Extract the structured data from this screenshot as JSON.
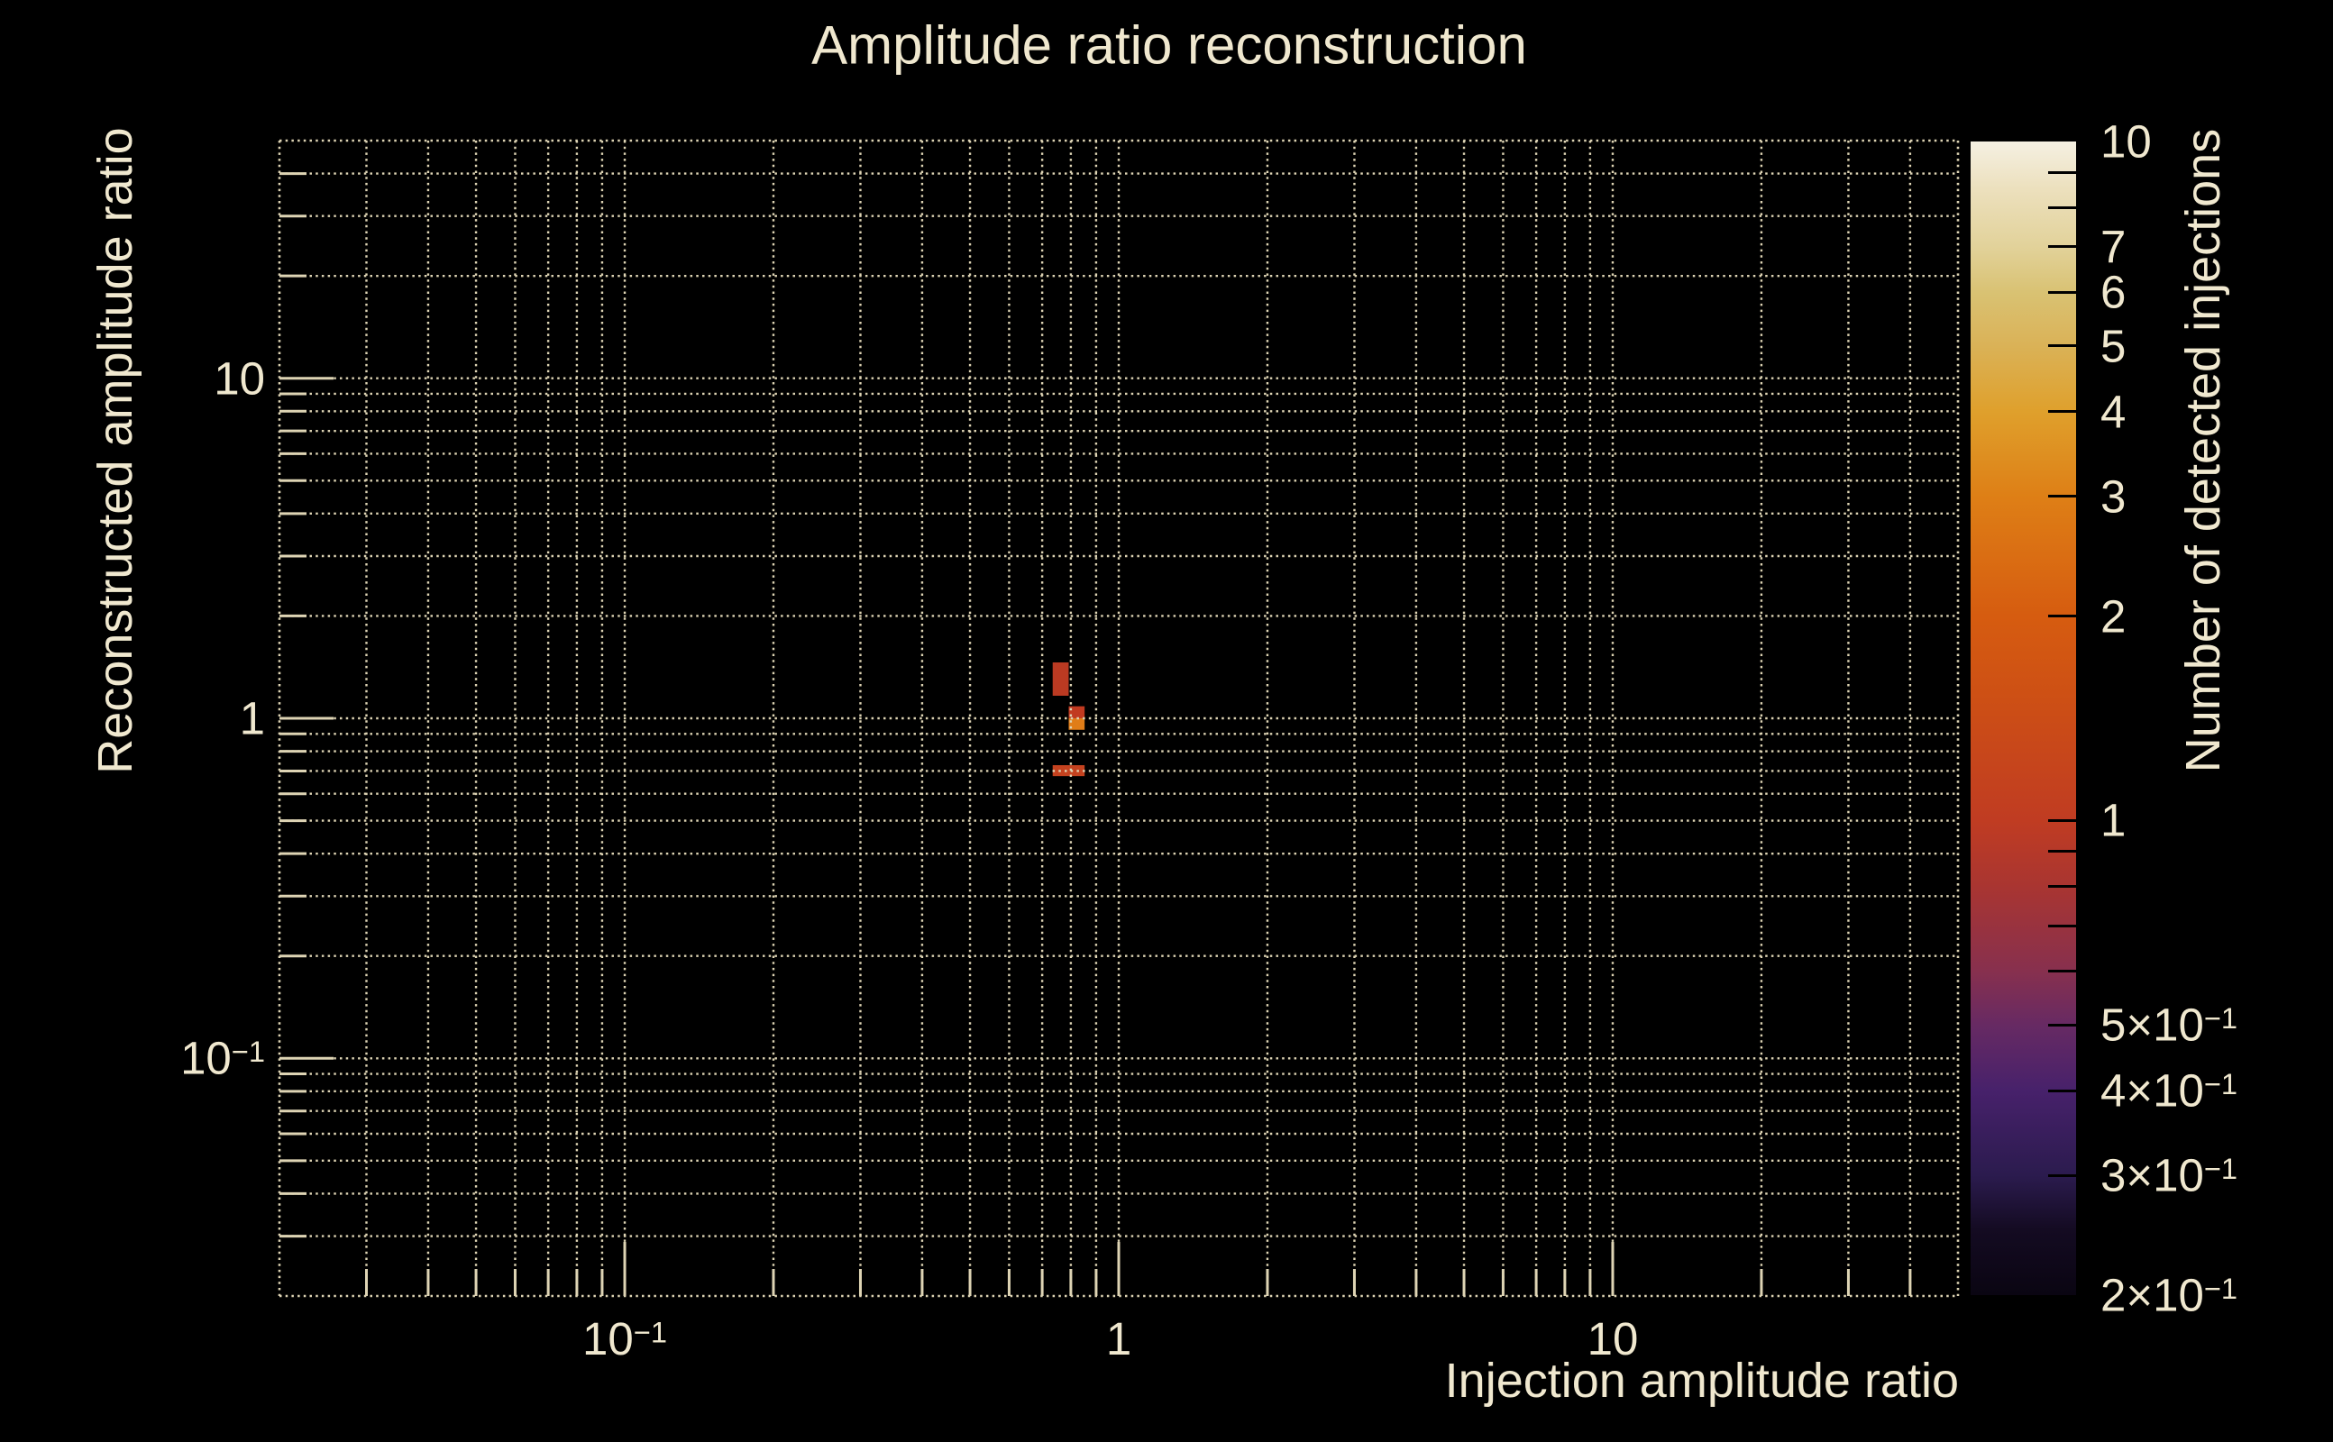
{
  "title": "Amplitude ratio reconstruction",
  "colors": {
    "background": "#000000",
    "text": "#f0e8cf",
    "grid": "#ded4b4",
    "colorbar_tick": "#000000"
  },
  "chart_data": {
    "type": "heatmap",
    "title": "Amplitude ratio reconstruction",
    "xlabel": "Injection amplitude ratio",
    "ylabel": "Reconstructed amplitude ratio",
    "x_scale": "log",
    "y_scale": "log",
    "x_range": [
      0.02,
      50
    ],
    "y_range": [
      0.02,
      50
    ],
    "grid": "dotted",
    "x_ticks": [
      {
        "v": 0.1,
        "base": "10",
        "sup": "−1"
      },
      {
        "v": 1,
        "base": "1",
        "sup": ""
      },
      {
        "v": 10,
        "base": "10",
        "sup": ""
      }
    ],
    "y_ticks": [
      {
        "v": 10,
        "base": "10",
        "sup": ""
      },
      {
        "v": 1,
        "base": "1",
        "sup": ""
      },
      {
        "v": 0.1,
        "base": "10",
        "sup": "−1"
      }
    ],
    "bins": [
      {
        "x": [
          0.735,
          0.792
        ],
        "y": [
          1.165,
          1.46
        ],
        "count": 1,
        "color": "#bb3a22"
      },
      {
        "x": [
          0.792,
          0.853
        ],
        "y": [
          1.0,
          1.085
        ],
        "count": 1,
        "color": "#c13a20"
      },
      {
        "x": [
          0.792,
          0.853
        ],
        "y": [
          0.925,
          1.0
        ],
        "count": 2,
        "color": "#e07d18"
      },
      {
        "x": [
          0.735,
          0.853
        ],
        "y": [
          0.676,
          0.728
        ],
        "count": 1,
        "color": "#c4421f"
      }
    ],
    "colorbar": {
      "label": "Number of detected injections",
      "scale": "log",
      "range": [
        0.2,
        10
      ],
      "ticks": [
        {
          "v": 10,
          "base": "10",
          "sup": ""
        },
        {
          "v": 7,
          "base": "7",
          "sup": ""
        },
        {
          "v": 6,
          "base": "6",
          "sup": ""
        },
        {
          "v": 5,
          "base": "5",
          "sup": ""
        },
        {
          "v": 4,
          "base": "4",
          "sup": ""
        },
        {
          "v": 3,
          "base": "3",
          "sup": ""
        },
        {
          "v": 2,
          "base": "2",
          "sup": ""
        },
        {
          "v": 1,
          "base": "1",
          "sup": ""
        },
        {
          "v": 0.5,
          "base": "5×10",
          "sup": "−1"
        },
        {
          "v": 0.4,
          "base": "4×10",
          "sup": "−1"
        },
        {
          "v": 0.3,
          "base": "3×10",
          "sup": "−1"
        },
        {
          "v": 0.2,
          "base": "2×10",
          "sup": "−1"
        }
      ],
      "minor_ticks": [
        9,
        8,
        0.9,
        0.8,
        0.7,
        0.6
      ],
      "gradient_stops": [
        {
          "v": 0.2,
          "color": "#0a0512"
        },
        {
          "v": 0.25,
          "color": "#140b22"
        },
        {
          "v": 0.3,
          "color": "#2b1b4e"
        },
        {
          "v": 0.4,
          "color": "#47216b"
        },
        {
          "v": 0.5,
          "color": "#672a63"
        },
        {
          "v": 0.6,
          "color": "#87304e"
        },
        {
          "v": 0.8,
          "color": "#a93531"
        },
        {
          "v": 1.0,
          "color": "#c03c22"
        },
        {
          "v": 1.5,
          "color": "#cd4f15"
        },
        {
          "v": 2.0,
          "color": "#d65c10"
        },
        {
          "v": 3.0,
          "color": "#de7f16"
        },
        {
          "v": 4.0,
          "color": "#dfa02c"
        },
        {
          "v": 5.0,
          "color": "#dab257"
        },
        {
          "v": 6.0,
          "color": "#d9c273"
        },
        {
          "v": 7.0,
          "color": "#e2d29a"
        },
        {
          "v": 8.5,
          "color": "#ece0bd"
        },
        {
          "v": 10,
          "color": "#f5f0e2"
        }
      ]
    }
  }
}
